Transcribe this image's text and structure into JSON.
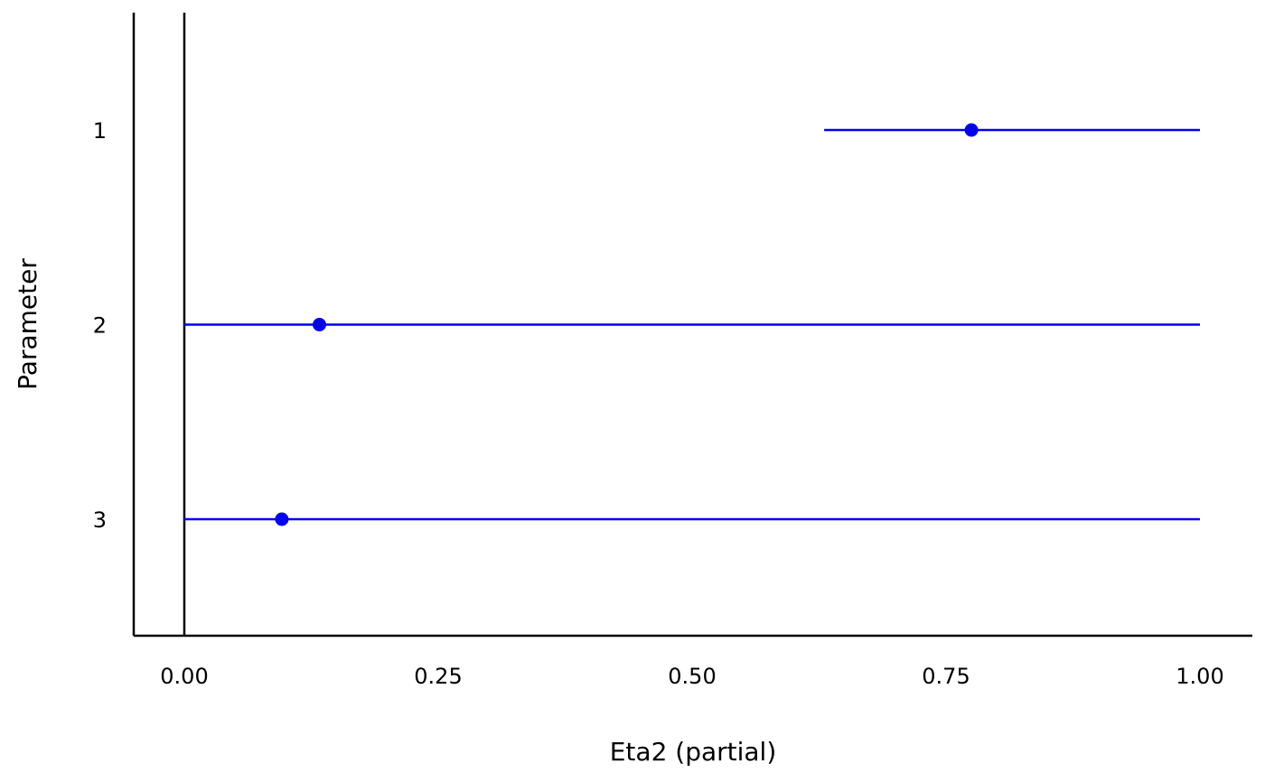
{
  "chart_data": {
    "type": "scatter",
    "title": "",
    "xlabel": "Eta2 (partial)",
    "ylabel": "Parameter",
    "xlim": [
      -0.05,
      1.05
    ],
    "x_ticks": [
      "0.00",
      "0.25",
      "0.50",
      "0.75",
      "1.00"
    ],
    "x_tick_values": [
      0,
      0.25,
      0.5,
      0.75,
      1.0
    ],
    "categories": [
      "1",
      "2",
      "3"
    ],
    "series": [
      {
        "points": [
          {
            "parameter": "1",
            "estimate": 0.775,
            "ci_low": 0.63,
            "ci_high": 1.0
          },
          {
            "parameter": "2",
            "estimate": 0.133,
            "ci_low": 0.0,
            "ci_high": 1.0
          },
          {
            "parameter": "3",
            "estimate": 0.096,
            "ci_low": 0.0,
            "ci_high": 1.0
          }
        ]
      }
    ],
    "reference_line_x": 0,
    "grid": false,
    "legend": "none",
    "colors": {
      "series": "#0000ee",
      "axis": "#000000"
    }
  }
}
